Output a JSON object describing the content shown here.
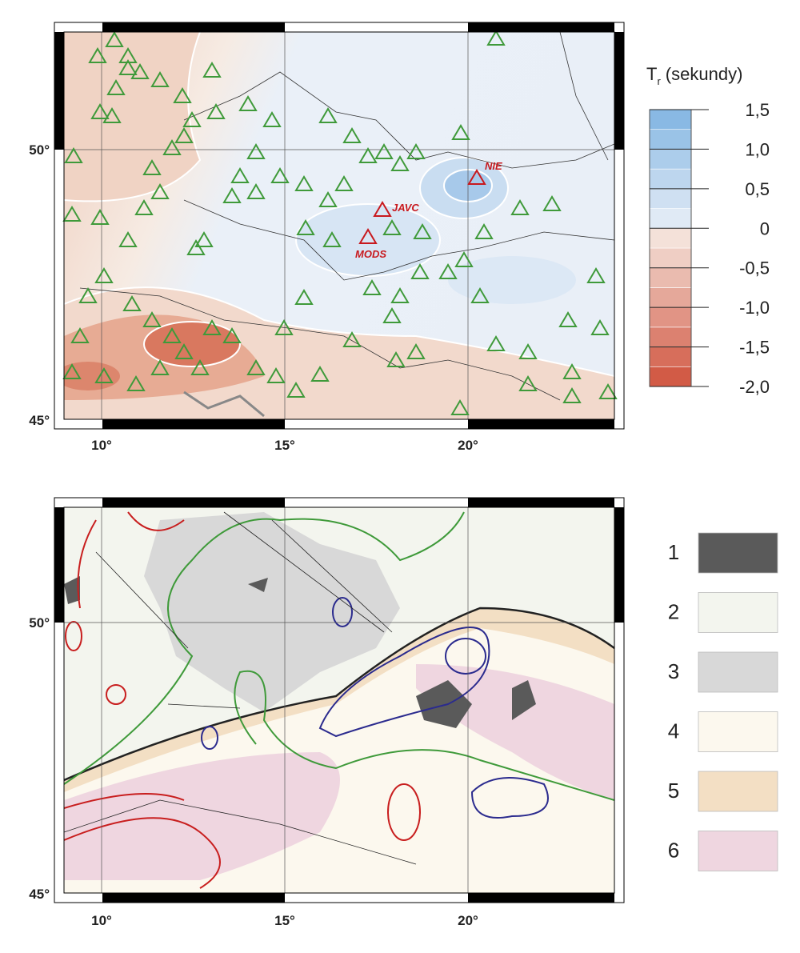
{
  "top_map": {
    "stations": [
      "NIE",
      "JAVC",
      "MODS"
    ],
    "colorbar": {
      "title": "T",
      "title_subscript": "r",
      "title_unit": "(sekundy)",
      "ylim": [
        -2.0,
        1.5
      ],
      "ticks": [
        {
          "value": 1.5,
          "label": "1,5"
        },
        {
          "value": 1.0,
          "label": "1,0"
        },
        {
          "value": 0.5,
          "label": "0,5"
        },
        0,
        {
          "value": -0.5,
          "label": "-0,5"
        },
        {
          "value": -1.0,
          "label": "-1,0"
        },
        {
          "value": -1.5,
          "label": "-1,5"
        },
        {
          "value": -2.0,
          "label": "-2,0"
        }
      ],
      "colors": [
        "#d0513c",
        "#f6ebe3",
        "#e9eff7",
        "#80b4e2"
      ]
    }
  },
  "axes": {
    "x_labels": [
      "10°",
      "15°",
      "20°"
    ],
    "y_labels": [
      "50°",
      "45°"
    ]
  },
  "legend": {
    "items": [
      {
        "label": "1",
        "color": "#5a5a5a"
      },
      {
        "label": "2",
        "color": "#f3f5ee"
      },
      {
        "label": "3",
        "color": "#d8d8d8"
      },
      {
        "label": "4",
        "color": "#fcf8ee"
      },
      {
        "label": "5",
        "color": "#f3dfc4"
      },
      {
        "label": "6",
        "color": "#efd6e0"
      }
    ]
  }
}
